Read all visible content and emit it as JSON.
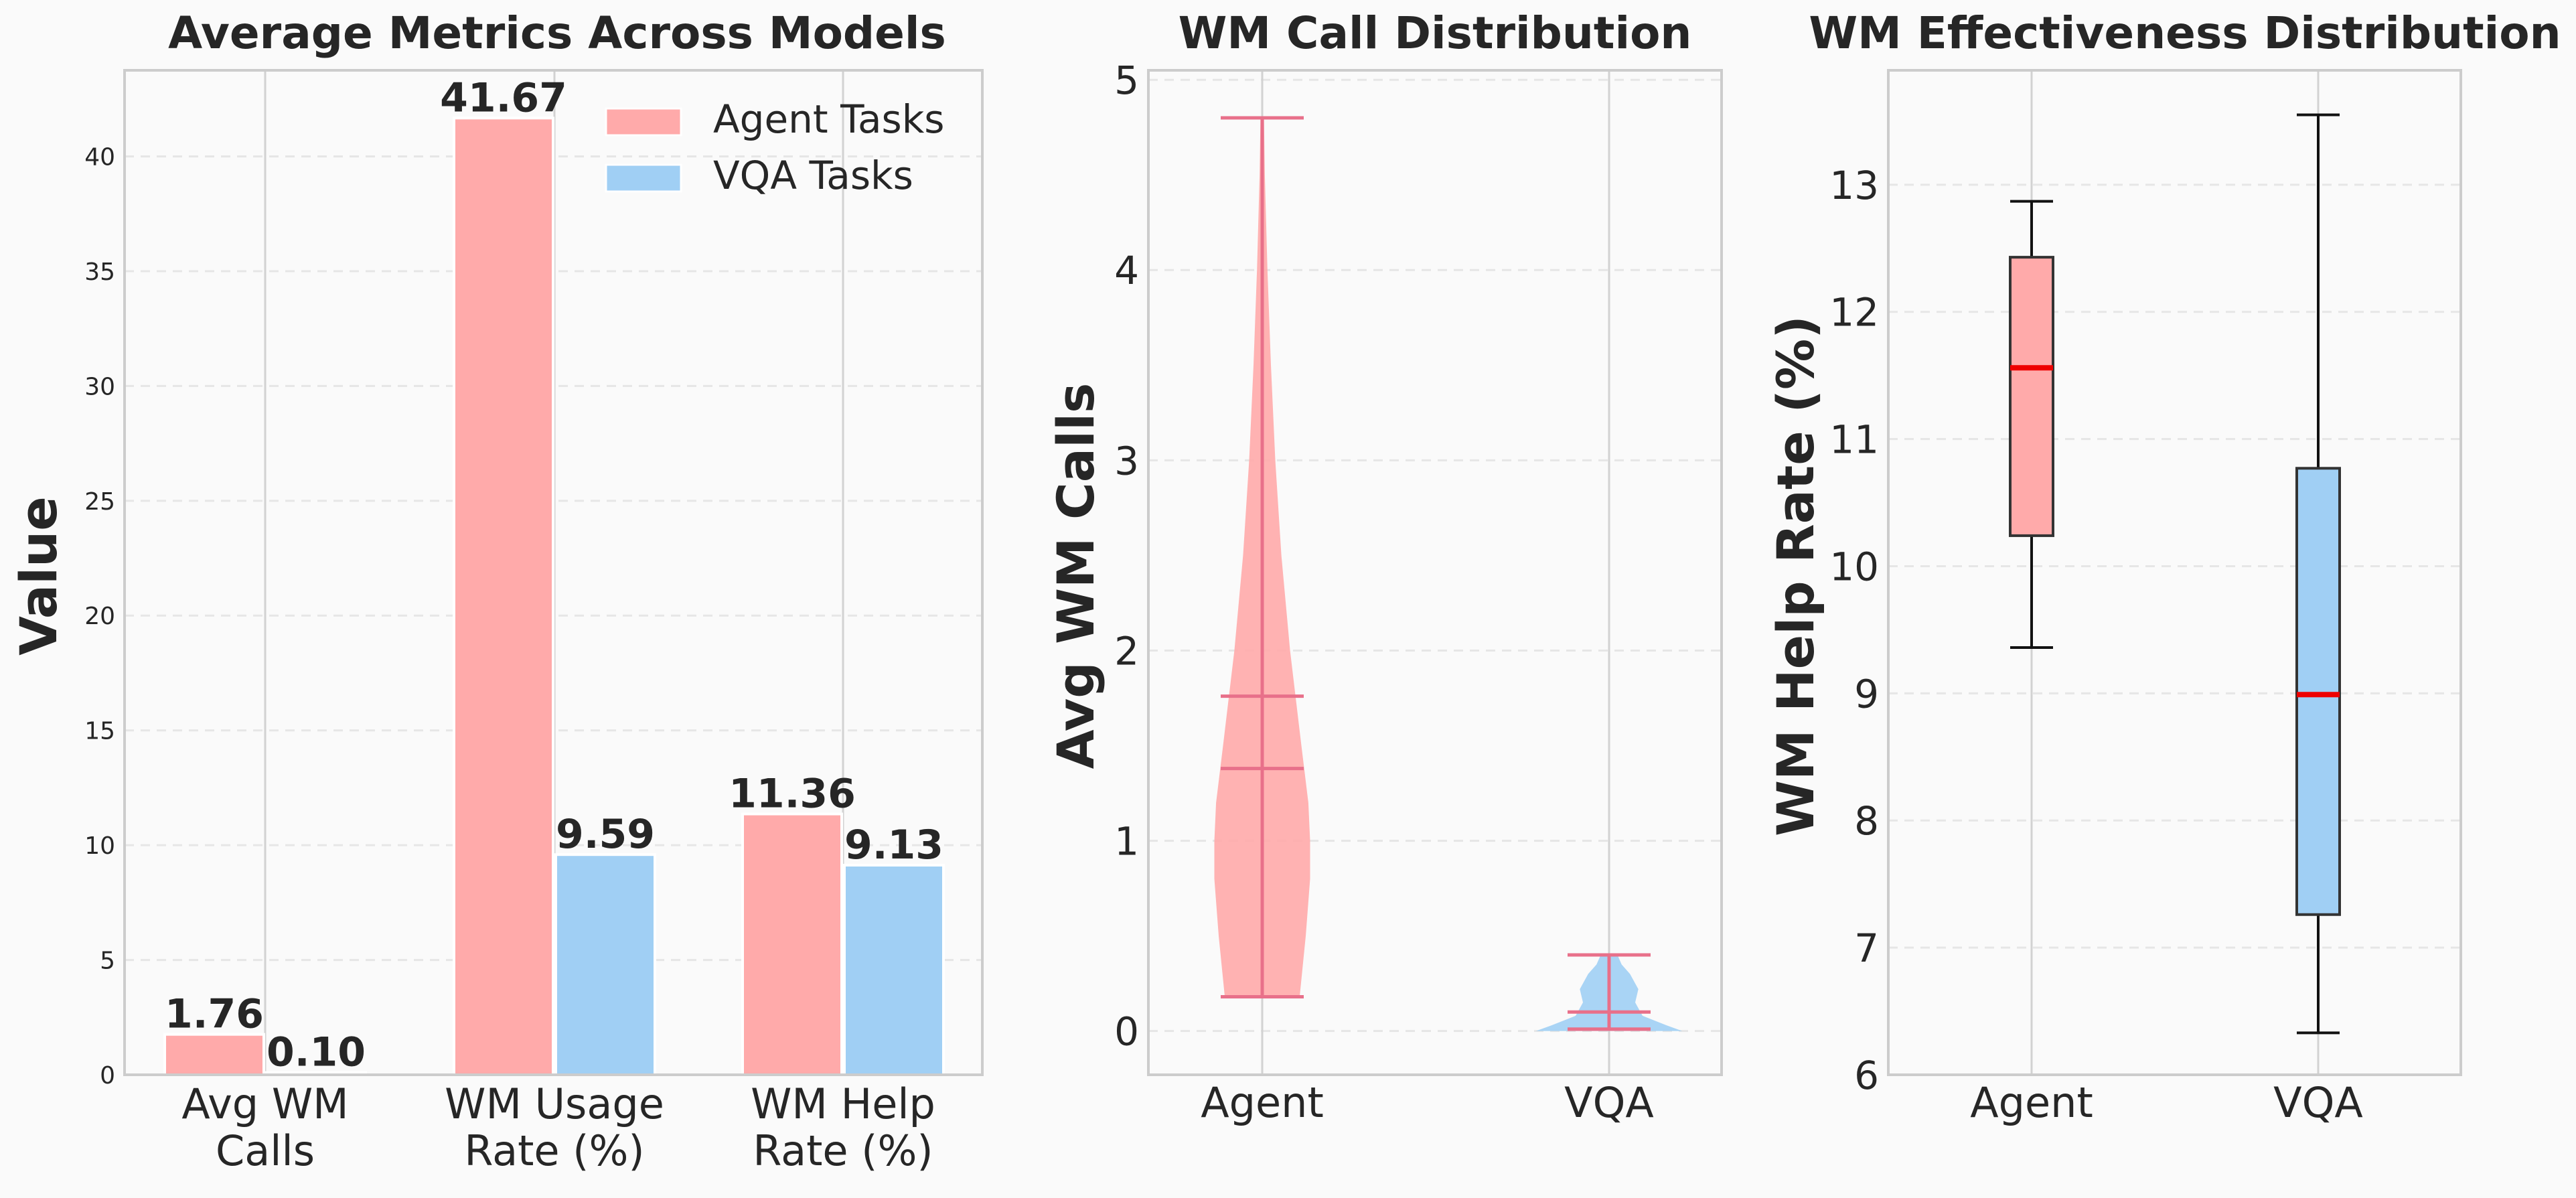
{
  "colors": {
    "agent": "#ffaaaa",
    "vqa": "#a0cff4",
    "agent_line": "#e8708a",
    "median": "#ee0000",
    "box_edge": "#333333",
    "grid": "#e6e6e6",
    "frame": "#cccccc",
    "background": "#fafafa"
  },
  "chart_data": [
    {
      "type": "bar",
      "title": "Average Metrics Across Models",
      "ylabel": "Value",
      "xlabel": "",
      "ylim": [
        0,
        43.75
      ],
      "yticks": [
        0,
        5,
        10,
        15,
        20,
        25,
        30,
        35,
        40
      ],
      "categories": [
        [
          "Avg WM",
          "Calls"
        ],
        [
          "WM Usage",
          "Rate (%)"
        ],
        [
          "WM Help",
          "Rate (%)"
        ]
      ],
      "series": [
        {
          "name": "Agent Tasks",
          "values": [
            1.76,
            41.67,
            11.36
          ],
          "labels": [
            "1.76",
            "41.67",
            "11.36"
          ]
        },
        {
          "name": "VQA Tasks",
          "values": [
            0.1,
            9.59,
            9.13
          ],
          "labels": [
            "0.10",
            "9.59",
            "9.13"
          ]
        }
      ],
      "legend": "top-right",
      "grid": true
    },
    {
      "type": "violin",
      "title": "WM Call Distribution",
      "ylabel": "Avg WM Calls",
      "ylim": [
        -0.23,
        5.05
      ],
      "yticks": [
        0,
        1,
        2,
        3,
        4,
        5
      ],
      "categories": [
        "Agent",
        "VQA"
      ],
      "series": [
        {
          "name": "Agent",
          "min": 0.18,
          "max": 4.8,
          "median": 1.38,
          "mean": 1.76,
          "density": [
            [
              0.18,
              0.43
            ],
            [
              0.5,
              0.5
            ],
            [
              0.8,
              0.55
            ],
            [
              1.0,
              0.55
            ],
            [
              1.2,
              0.53
            ],
            [
              1.5,
              0.45
            ],
            [
              2.0,
              0.32
            ],
            [
              2.5,
              0.22
            ],
            [
              3.0,
              0.15
            ],
            [
              3.5,
              0.1
            ],
            [
              4.0,
              0.06
            ],
            [
              4.5,
              0.03
            ],
            [
              4.8,
              0.02
            ]
          ]
        },
        {
          "name": "VQA",
          "min": 0.01,
          "max": 0.4,
          "median": 0.01,
          "mean": 0.1,
          "density": [
            [
              0.0,
              0.7
            ],
            [
              0.03,
              0.55
            ],
            [
              0.08,
              0.32
            ],
            [
              0.15,
              0.25
            ],
            [
              0.22,
              0.28
            ],
            [
              0.3,
              0.2
            ],
            [
              0.35,
              0.12
            ],
            [
              0.4,
              0.08
            ]
          ]
        }
      ],
      "grid": true
    },
    {
      "type": "box",
      "title": "WM Effectiveness Distribution",
      "ylabel": "WM Help Rate (%)",
      "ylim": [
        6.0,
        13.9
      ],
      "yticks": [
        6,
        7,
        8,
        9,
        10,
        11,
        12,
        13
      ],
      "categories": [
        "Agent",
        "VQA"
      ],
      "series": [
        {
          "name": "Agent",
          "whisker_low": 9.36,
          "q1": 10.24,
          "median": 11.56,
          "q3": 12.43,
          "whisker_high": 12.87
        },
        {
          "name": "VQA",
          "whisker_low": 6.33,
          "q1": 7.26,
          "median": 8.99,
          "q3": 10.77,
          "whisker_high": 13.55
        }
      ],
      "grid": true
    }
  ]
}
